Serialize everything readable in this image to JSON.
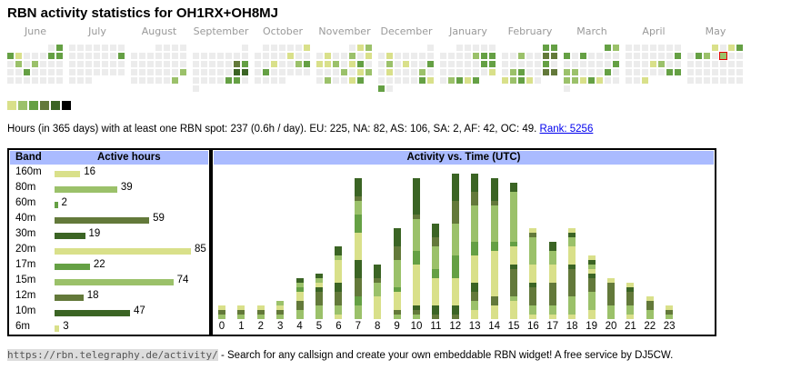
{
  "title": "RBN activity statistics for OH1RX+OH8MJ",
  "colors": {
    "grey": "#ececec",
    "levels": [
      "#ececec",
      "#d9e08a",
      "#9bc16a",
      "#65a044",
      "#63793a",
      "#3b6424",
      "#000000"
    ],
    "header": "#aabbff"
  },
  "heatmap": [
    {
      "month": "June",
      "rows": [
        "     03",
        "3100033",
        "0202000",
        "0030000",
        "0000000"
      ]
    },
    {
      "month": "July",
      "rows": [
        "0000000",
        "0000003",
        "0000000",
        "0000000",
        "000"
      ]
    },
    {
      "month": "August",
      "rows": [
        "   0000",
        "0000000",
        "0000000",
        "0000002",
        "000002"
      ]
    },
    {
      "month": "September",
      "rows": [
        "      0",
        "0000000",
        "0000043",
        "0000055",
        "0000330",
        "0"
      ]
    },
    {
      "month": "October",
      "rows": [
        " 000001",
        "0000100",
        "0010023",
        "0300000",
        "0000"
      ]
    },
    {
      "month": "November",
      "rows": [
        "    012",
        "0100201",
        "1120130",
        "0002012",
        "020013"
      ]
    },
    {
      "month": "December",
      "rows": [
        "      0",
        "0100000",
        "0201003",
        "0100020",
        "0000031",
        "30"
      ]
    },
    {
      "month": "January",
      "rows": [
        "  00000",
        "0000233",
        "0000033",
        "0000001",
        "02313"
      ]
    },
    {
      "month": "February",
      "rows": [
        "     33",
        "0020044",
        "0000030",
        "0230044",
        "12310"
      ]
    },
    {
      "month": "March",
      "rows": [
        "     32",
        "3030000",
        "0000003",
        "2200030",
        "2213100",
        "0"
      ]
    },
    {
      "month": "April",
      "rows": [
        "0000000",
        "0000003",
        "0001200",
        "0000033",
        "001"
      ]
    },
    {
      "month": "May",
      "rows": [
        "   1013",
        "0320200",
        "0000000",
        "0000000",
        "0000000"
      ],
      "selected": [
        1,
        4
      ]
    }
  ],
  "summary": {
    "text": "Hours (in 365 days) with at least one RBN spot: 237 (0.6h / day). EU: 225, NA: 82, AS: 106, SA: 2, AF: 42, OC: 49.",
    "rank": "Rank: 5256"
  },
  "bands": {
    "header_band": "Band",
    "header_hours": "Active hours",
    "rows": [
      {
        "band": "160m",
        "hours": "16",
        "value": 16,
        "level": 1
      },
      {
        "band": "80m",
        "hours": "39",
        "value": 39,
        "level": 2
      },
      {
        "band": "60m",
        "hours": "2",
        "value": 2,
        "level": 3
      },
      {
        "band": "40m",
        "hours": "59",
        "value": 59,
        "level": 4
      },
      {
        "band": "30m",
        "hours": "19",
        "value": 19,
        "level": 5
      },
      {
        "band": "20m",
        "hours": "85",
        "value": 85,
        "level": 1
      },
      {
        "band": "17m",
        "hours": "22",
        "value": 22,
        "level": 3
      },
      {
        "band": "15m",
        "hours": "74",
        "value": 74,
        "level": 2
      },
      {
        "band": "12m",
        "hours": "18",
        "value": 18,
        "level": 4
      },
      {
        "band": "10m",
        "hours": "47",
        "value": 47,
        "level": 5
      },
      {
        "band": "6m",
        "hours": "3",
        "value": 3,
        "level": 1
      }
    ]
  },
  "chart_data": {
    "type": "bar",
    "title": "Activity vs. Time (UTC)",
    "categories": [
      "0",
      "1",
      "2",
      "3",
      "4",
      "5",
      "6",
      "7",
      "8",
      "9",
      "10",
      "11",
      "12",
      "13",
      "14",
      "15",
      "16",
      "17",
      "18",
      "19",
      "20",
      "21",
      "22",
      "23"
    ],
    "stacks": [
      [
        [
          2,
          1
        ],
        [
          4,
          1
        ],
        [
          1,
          1
        ]
      ],
      [
        [
          2,
          1
        ],
        [
          4,
          1
        ],
        [
          1,
          1
        ]
      ],
      [
        [
          2,
          1
        ],
        [
          4,
          1
        ],
        [
          1,
          1
        ]
      ],
      [
        [
          2,
          1
        ],
        [
          4,
          1
        ],
        [
          1,
          1
        ],
        [
          2,
          1
        ]
      ],
      [
        [
          2,
          2
        ],
        [
          4,
          2
        ],
        [
          1,
          2
        ],
        [
          3,
          1
        ],
        [
          2,
          1
        ],
        [
          5,
          1
        ]
      ],
      [
        [
          2,
          3
        ],
        [
          4,
          3
        ],
        [
          5,
          1
        ],
        [
          1,
          1
        ],
        [
          2,
          1
        ],
        [
          5,
          1
        ]
      ],
      [
        [
          1,
          1
        ],
        [
          2,
          2
        ],
        [
          4,
          3
        ],
        [
          5,
          2
        ],
        [
          1,
          5
        ],
        [
          2,
          1
        ],
        [
          5,
          2
        ]
      ],
      [
        [
          2,
          3
        ],
        [
          3,
          2
        ],
        [
          4,
          4
        ],
        [
          5,
          4
        ],
        [
          1,
          6
        ],
        [
          3,
          4
        ],
        [
          2,
          3
        ],
        [
          4,
          1
        ],
        [
          5,
          4
        ]
      ],
      [
        [
          1,
          5
        ],
        [
          2,
          3
        ],
        [
          4,
          1
        ],
        [
          5,
          3
        ]
      ],
      [
        [
          2,
          1
        ],
        [
          4,
          1
        ],
        [
          1,
          4
        ],
        [
          3,
          1
        ],
        [
          2,
          6
        ],
        [
          4,
          3
        ],
        [
          5,
          4
        ]
      ],
      [
        [
          2,
          1
        ],
        [
          4,
          1
        ],
        [
          5,
          1
        ],
        [
          1,
          9
        ],
        [
          3,
          3
        ],
        [
          2,
          7
        ],
        [
          4,
          1
        ],
        [
          5,
          8
        ]
      ],
      [
        [
          4,
          1
        ],
        [
          5,
          2
        ],
        [
          1,
          6
        ],
        [
          3,
          2
        ],
        [
          2,
          5
        ],
        [
          4,
          2
        ],
        [
          5,
          3
        ]
      ],
      [
        [
          4,
          1
        ],
        [
          5,
          2
        ],
        [
          1,
          6
        ],
        [
          3,
          5
        ],
        [
          2,
          7
        ],
        [
          4,
          5
        ],
        [
          5,
          6
        ]
      ],
      [
        [
          1,
          2
        ],
        [
          2,
          2
        ],
        [
          4,
          2
        ],
        [
          5,
          2
        ],
        [
          1,
          6
        ],
        [
          3,
          3
        ],
        [
          2,
          8
        ],
        [
          4,
          3
        ],
        [
          5,
          4
        ]
      ],
      [
        [
          1,
          3
        ],
        [
          4,
          2
        ],
        [
          1,
          10
        ],
        [
          3,
          2
        ],
        [
          2,
          8
        ],
        [
          4,
          1
        ],
        [
          5,
          5
        ]
      ],
      [
        [
          1,
          4
        ],
        [
          2,
          1
        ],
        [
          4,
          6
        ],
        [
          5,
          1
        ],
        [
          1,
          4
        ],
        [
          3,
          1
        ],
        [
          2,
          11
        ],
        [
          5,
          2
        ]
      ],
      [
        [
          1,
          1
        ],
        [
          2,
          2
        ],
        [
          4,
          4
        ],
        [
          5,
          1
        ],
        [
          1,
          4
        ],
        [
          2,
          6
        ],
        [
          4,
          1
        ],
        [
          1,
          1
        ]
      ],
      [
        [
          1,
          1
        ],
        [
          2,
          2
        ],
        [
          4,
          5
        ],
        [
          1,
          4
        ],
        [
          2,
          3
        ],
        [
          5,
          2
        ]
      ],
      [
        [
          1,
          1
        ],
        [
          2,
          4
        ],
        [
          4,
          6
        ],
        [
          5,
          1
        ],
        [
          1,
          4
        ],
        [
          2,
          2
        ],
        [
          5,
          1
        ],
        [
          1,
          1
        ]
      ],
      [
        [
          1,
          2
        ],
        [
          2,
          4
        ],
        [
          4,
          3
        ],
        [
          5,
          1
        ],
        [
          1,
          1
        ],
        [
          2,
          1
        ],
        [
          5,
          1
        ],
        [
          1,
          1
        ]
      ],
      [
        [
          2,
          3
        ],
        [
          4,
          5
        ],
        [
          1,
          1
        ]
      ],
      [
        [
          1,
          1
        ],
        [
          2,
          2
        ],
        [
          4,
          3
        ],
        [
          5,
          1
        ],
        [
          1,
          1
        ]
      ],
      [
        [
          2,
          2
        ],
        [
          4,
          2
        ],
        [
          1,
          1
        ]
      ],
      [
        [
          2,
          1
        ],
        [
          4,
          1
        ],
        [
          1,
          1
        ]
      ]
    ]
  },
  "footer": {
    "url": "https://rbn.telegraphy.de/activity/",
    "text": " - Search for any callsign and create your own embeddable RBN widget! A free service by DJ5CW."
  }
}
